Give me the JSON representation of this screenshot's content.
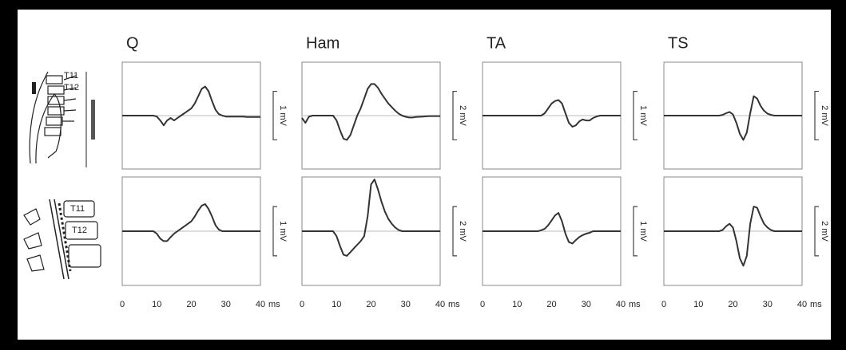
{
  "chart_data": [
    {
      "type": "line",
      "title": "Q",
      "x": [
        0,
        1,
        2,
        3,
        4,
        5,
        6,
        7,
        8,
        9,
        10,
        11,
        12,
        13,
        14,
        15,
        16,
        17,
        18,
        19,
        20,
        21,
        22,
        23,
        24,
        25,
        26,
        27,
        28,
        29,
        30,
        31,
        32,
        33,
        34,
        35,
        36,
        37,
        38,
        39,
        40
      ],
      "xlim": [
        0,
        40
      ],
      "xticks": [
        0,
        10,
        20,
        30,
        40
      ],
      "x_unit": "ms",
      "ylim": [
        -1.1,
        1.1
      ],
      "scale_bar": {
        "value": 1,
        "label": "1 mV"
      },
      "color": "#333333",
      "rows": [
        {
          "values": [
            0,
            0,
            0,
            0,
            0,
            0,
            0,
            0,
            0,
            0,
            -0.02,
            -0.1,
            -0.2,
            -0.1,
            -0.05,
            -0.1,
            -0.05,
            0,
            0.05,
            0.1,
            0.15,
            0.25,
            0.4,
            0.55,
            0.6,
            0.5,
            0.3,
            0.12,
            0.03,
            0,
            -0.02,
            -0.02,
            -0.02,
            -0.02,
            -0.02,
            -0.02,
            -0.03,
            -0.03,
            -0.03,
            -0.03,
            -0.03
          ]
        },
        {
          "values": [
            0,
            0,
            0,
            0,
            0,
            0,
            0,
            0,
            0,
            0,
            -0.05,
            -0.15,
            -0.2,
            -0.2,
            -0.12,
            -0.05,
            0,
            0.05,
            0.1,
            0.15,
            0.2,
            0.3,
            0.42,
            0.52,
            0.55,
            0.45,
            0.3,
            0.12,
            0.03,
            0,
            0,
            0,
            0,
            0,
            0,
            0,
            0,
            0,
            0,
            0,
            0
          ]
        }
      ]
    },
    {
      "type": "line",
      "title": "Ham",
      "x": [
        0,
        1,
        2,
        3,
        4,
        5,
        6,
        7,
        8,
        9,
        10,
        11,
        12,
        13,
        14,
        15,
        16,
        17,
        18,
        19,
        20,
        21,
        22,
        23,
        24,
        25,
        26,
        27,
        28,
        29,
        30,
        31,
        32,
        33,
        34,
        35,
        36,
        37,
        38,
        39,
        40
      ],
      "xlim": [
        0,
        40
      ],
      "xticks": [
        0,
        10,
        20,
        30,
        40
      ],
      "x_unit": "ms",
      "ylim": [
        -2.2,
        2.2
      ],
      "scale_bar": {
        "value": 2,
        "label": "2 mV"
      },
      "color": "#333333",
      "rows": [
        {
          "values": [
            -0.1,
            -0.3,
            -0.05,
            0,
            0,
            0,
            0,
            0,
            0,
            0,
            -0.2,
            -0.6,
            -0.95,
            -1.0,
            -0.8,
            -0.4,
            0,
            0.3,
            0.7,
            1.1,
            1.3,
            1.3,
            1.15,
            0.9,
            0.7,
            0.5,
            0.35,
            0.2,
            0.08,
            0,
            -0.05,
            -0.08,
            -0.08,
            -0.06,
            -0.05,
            -0.04,
            -0.03,
            -0.02,
            -0.02,
            -0.02,
            -0.02
          ]
        },
        {
          "values": [
            0,
            0,
            0,
            0,
            0,
            0,
            0,
            0,
            0,
            0,
            -0.2,
            -0.6,
            -0.95,
            -1.0,
            -0.85,
            -0.7,
            -0.55,
            -0.4,
            -0.2,
            0.6,
            1.9,
            2.1,
            1.7,
            1.2,
            0.8,
            0.5,
            0.3,
            0.15,
            0.05,
            0,
            0,
            0,
            0,
            0,
            0,
            0,
            0,
            0,
            0,
            0,
            0
          ]
        }
      ]
    },
    {
      "type": "line",
      "title": "TA",
      "x": [
        0,
        1,
        2,
        3,
        4,
        5,
        6,
        7,
        8,
        9,
        10,
        11,
        12,
        13,
        14,
        15,
        16,
        17,
        18,
        19,
        20,
        21,
        22,
        23,
        24,
        25,
        26,
        27,
        28,
        29,
        30,
        31,
        32,
        33,
        34,
        35,
        36,
        37,
        38,
        39,
        40
      ],
      "xlim": [
        0,
        40
      ],
      "xticks": [
        0,
        10,
        20,
        30,
        40
      ],
      "x_unit": "ms",
      "ylim": [
        -1.1,
        1.1
      ],
      "scale_bar": {
        "value": 1,
        "label": "1 mV"
      },
      "color": "#333333",
      "rows": [
        {
          "values": [
            0,
            0,
            0,
            0,
            0,
            0,
            0,
            0,
            0,
            0,
            0,
            0,
            0,
            0,
            0,
            0,
            0,
            0,
            0.05,
            0.15,
            0.25,
            0.3,
            0.32,
            0.25,
            0.05,
            -0.15,
            -0.23,
            -0.2,
            -0.12,
            -0.08,
            -0.1,
            -0.1,
            -0.05,
            -0.02,
            0,
            0,
            0,
            0,
            0,
            0,
            0
          ]
        },
        {
          "values": [
            0,
            0,
            0,
            0,
            0,
            0,
            0,
            0,
            0,
            0,
            0,
            0,
            0,
            0,
            0,
            0,
            0,
            0.02,
            0.05,
            0.12,
            0.22,
            0.32,
            0.37,
            0.2,
            -0.05,
            -0.22,
            -0.25,
            -0.18,
            -0.12,
            -0.08,
            -0.05,
            -0.03,
            0,
            0,
            0,
            0,
            0,
            0,
            0,
            0,
            0
          ]
        }
      ]
    },
    {
      "type": "line",
      "title": "TS",
      "x": [
        0,
        1,
        2,
        3,
        4,
        5,
        6,
        7,
        8,
        9,
        10,
        11,
        12,
        13,
        14,
        15,
        16,
        17,
        18,
        19,
        20,
        21,
        22,
        23,
        24,
        25,
        26,
        27,
        28,
        29,
        30,
        31,
        32,
        33,
        34,
        35,
        36,
        37,
        38,
        39,
        40
      ],
      "xlim": [
        0,
        40
      ],
      "xticks": [
        0,
        10,
        20,
        30,
        40
      ],
      "x_unit": "ms",
      "ylim": [
        -2.2,
        2.2
      ],
      "scale_bar": {
        "value": 2,
        "label": "2 mV"
      },
      "color": "#333333",
      "rows": [
        {
          "values": [
            0,
            0,
            0,
            0,
            0,
            0,
            0,
            0,
            0,
            0,
            0,
            0,
            0,
            0,
            0,
            0,
            0,
            0.03,
            0.1,
            0.15,
            0.05,
            -0.3,
            -0.75,
            -1.0,
            -0.7,
            0.1,
            0.8,
            0.7,
            0.4,
            0.2,
            0.08,
            0.03,
            0,
            0,
            0,
            0,
            0,
            0,
            0,
            0,
            0
          ]
        },
        {
          "values": [
            0,
            0,
            0,
            0,
            0,
            0,
            0,
            0,
            0,
            0,
            0,
            0,
            0,
            0,
            0,
            0,
            0,
            0.05,
            0.2,
            0.3,
            0.15,
            -0.4,
            -1.1,
            -1.4,
            -1.0,
            0.3,
            1.0,
            0.95,
            0.6,
            0.3,
            0.15,
            0.05,
            0,
            0,
            0,
            0,
            0,
            0,
            0,
            0,
            0
          ]
        }
      ]
    }
  ],
  "illustrations": [
    {
      "labels": [
        "T11",
        "T12"
      ]
    },
    {
      "labels": [
        "T11",
        "T12"
      ]
    }
  ]
}
